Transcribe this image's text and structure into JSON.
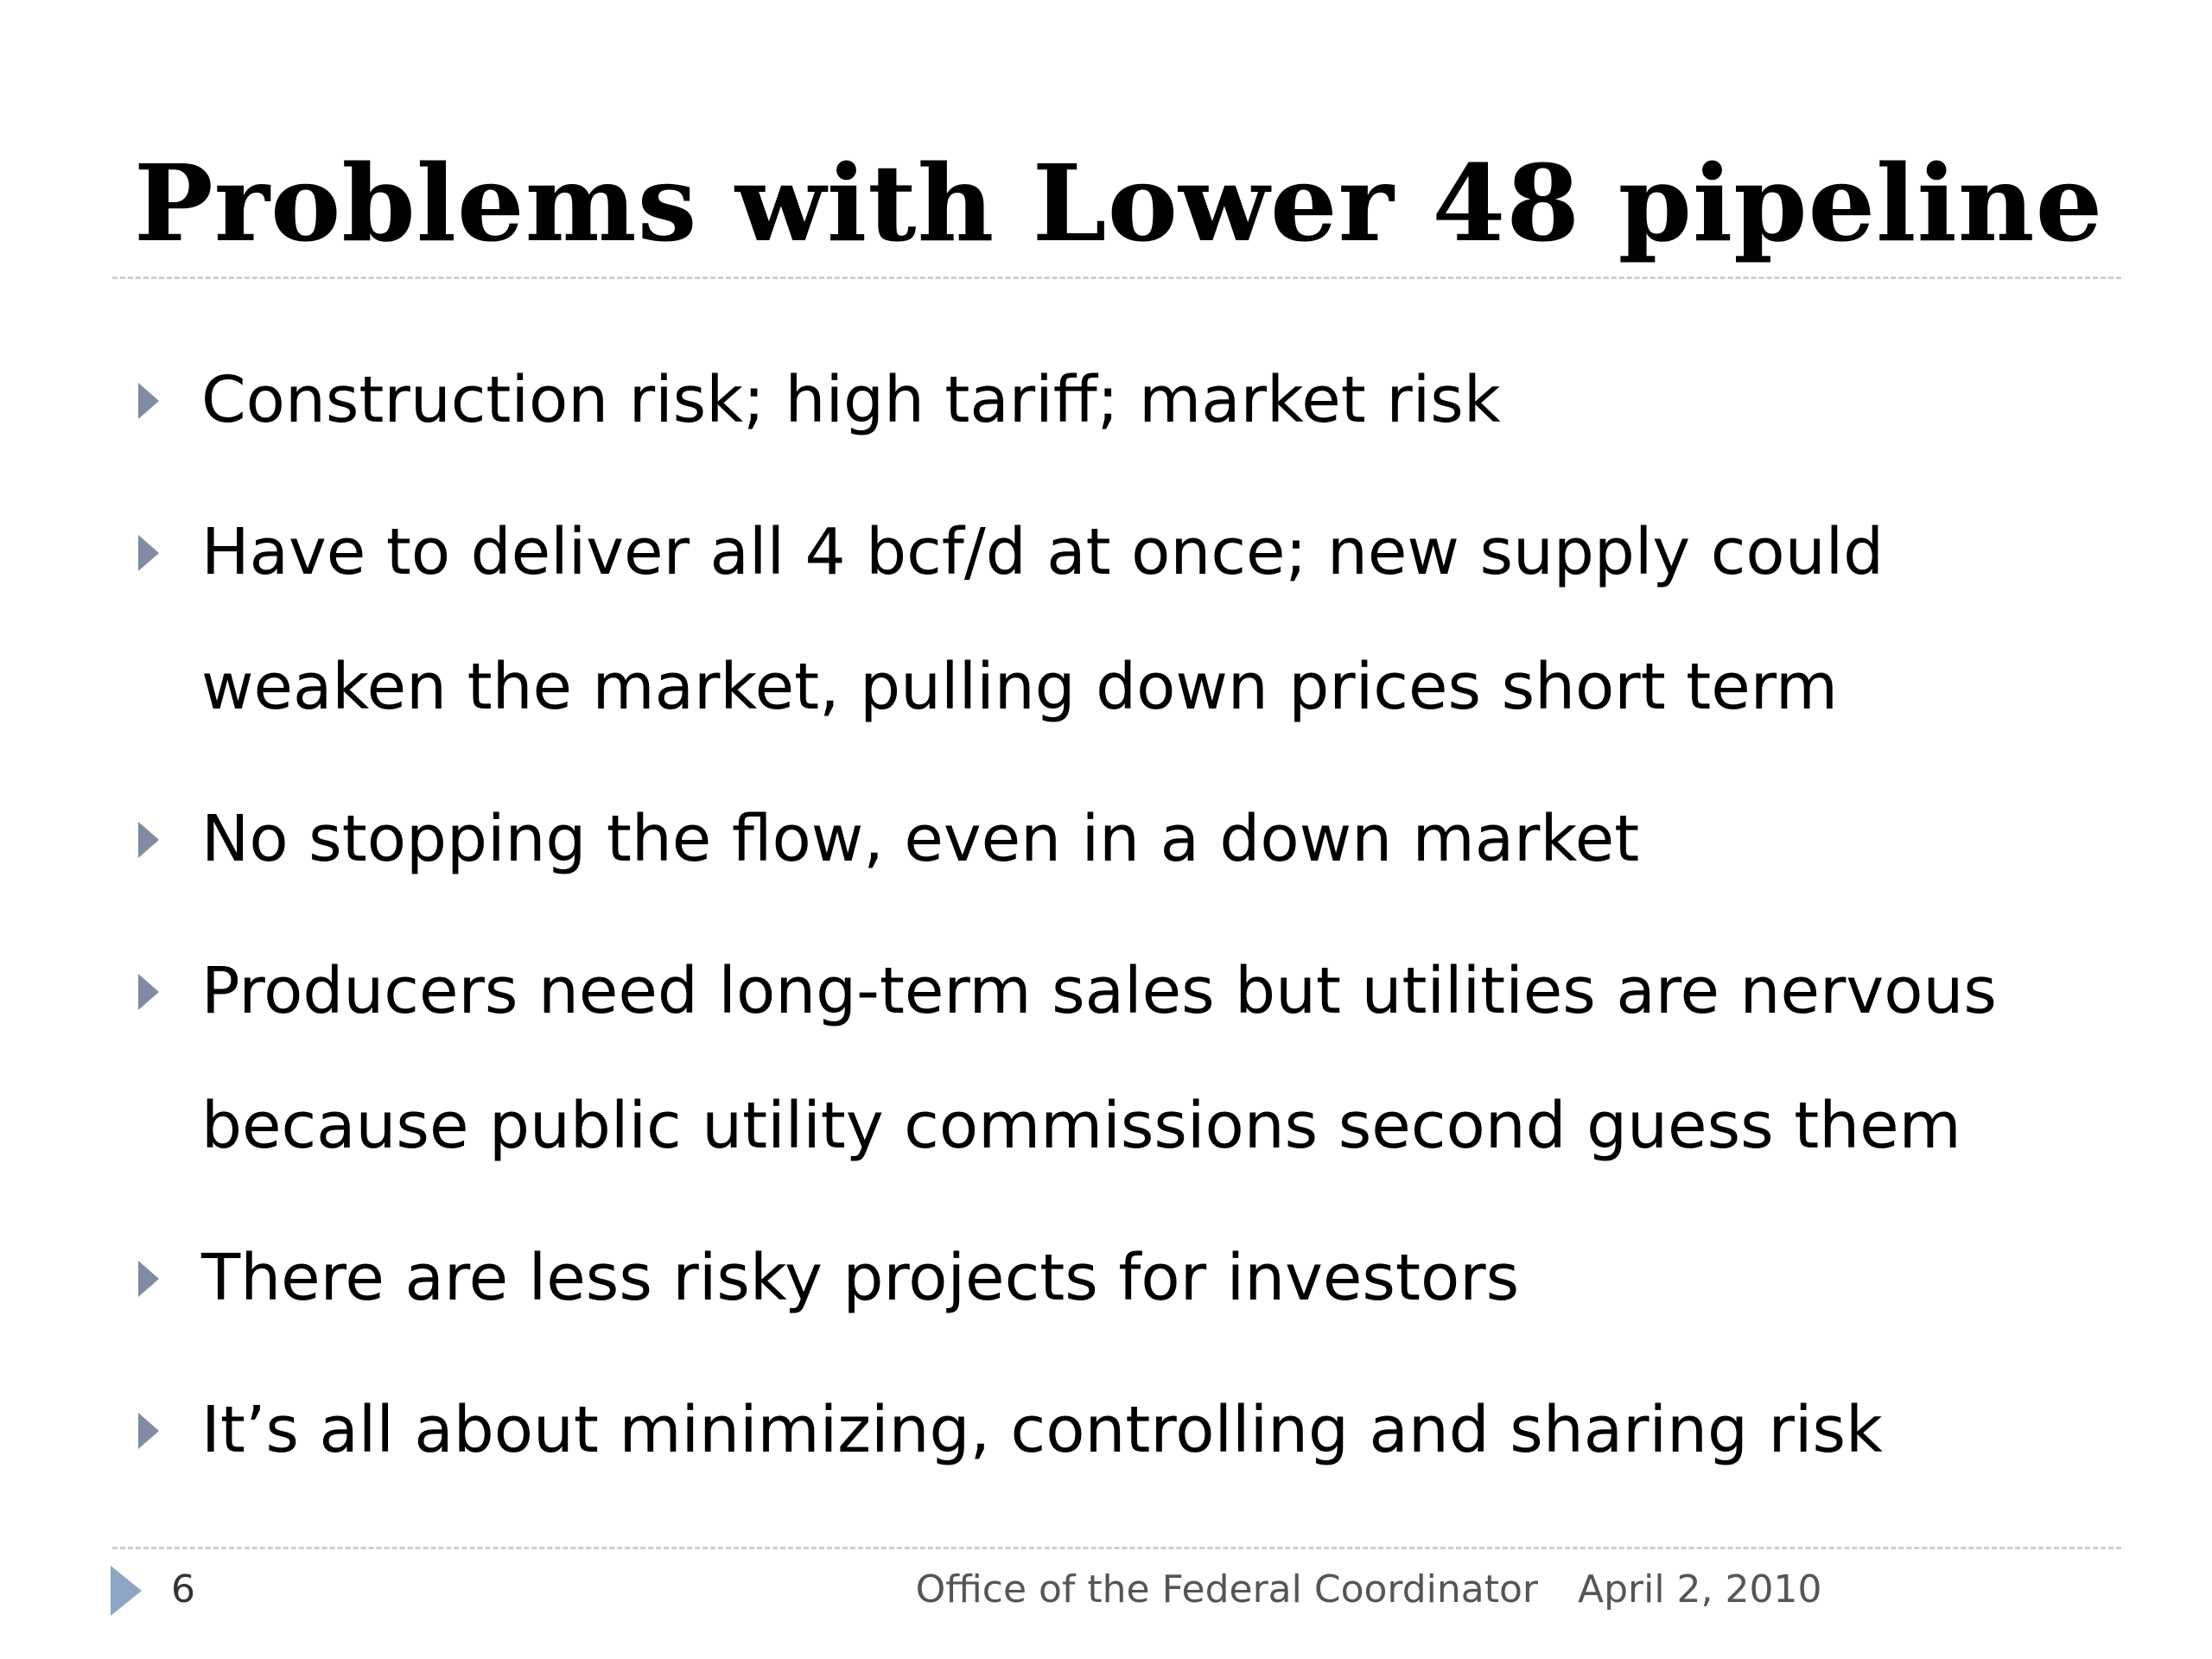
{
  "slide": {
    "title": "Problems with Lower 48 pipeline",
    "bullets": [
      "Construction risk; high tariff; market risk",
      "Have to deliver all 4 bcf/d at once; new supply could weaken the market, pulling down prices short term",
      "No stopping the flow, even in a down market",
      "Producers need long-term sales but utilities are nervous because public utility commissions second guess them",
      "There are less risky projects for investors",
      "It’s all about minimizing, controlling and sharing risk"
    ]
  },
  "footer": {
    "slide_number": "6",
    "organization": "Office of the Federal Coordinator",
    "date": "April 2, 2010"
  },
  "colors": {
    "bullet_marker": "#7f8ca3",
    "footer_arrow": "#8ea6c6",
    "divider": "#c9d2dc"
  },
  "icons": {
    "bullet": "triangle-right-icon",
    "footer": "triangle-right-icon"
  }
}
